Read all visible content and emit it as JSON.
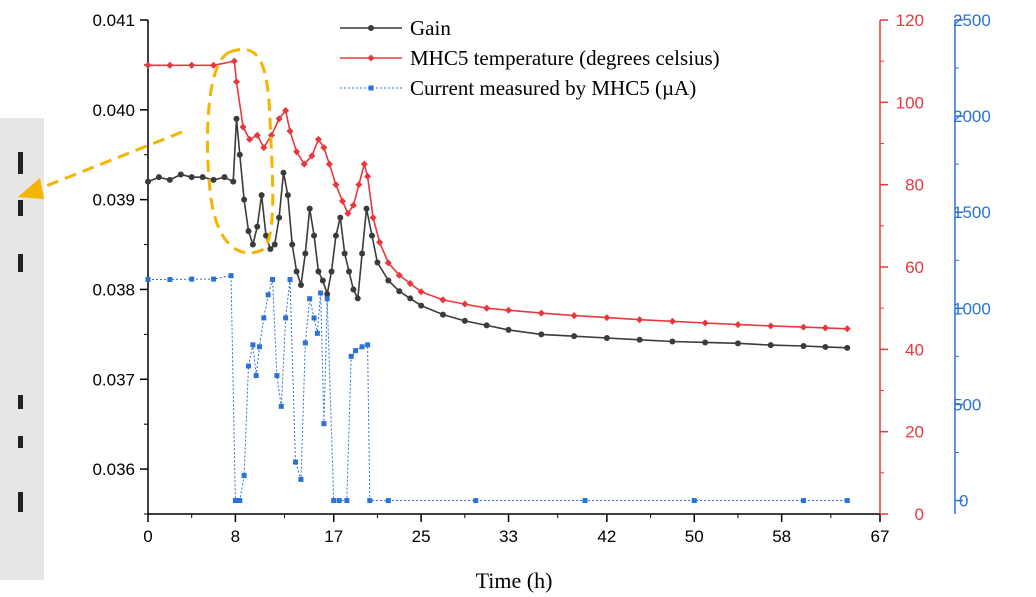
{
  "chart_data": {
    "type": "line",
    "xlabel": "Time (h)",
    "x_ticks": [
      "0",
      "8",
      "17",
      "25",
      "33",
      "42",
      "50",
      "58",
      "67"
    ],
    "xlim": [
      0,
      67
    ],
    "axes": {
      "left": {
        "ylim": [
          0.0355,
          0.041
        ],
        "ticks": [
          "0.036",
          "0.037",
          "0.038",
          "0.039",
          "0.040",
          "0.041"
        ],
        "color": "#333333"
      },
      "right_temperature": {
        "ylim": [
          0,
          120
        ],
        "ticks": [
          "0",
          "20",
          "40",
          "60",
          "80",
          "100",
          "120"
        ],
        "color": "#e8383d"
      },
      "right_current": {
        "ylim": [
          -70,
          2500
        ],
        "ticks": [
          "0",
          "500",
          "1000",
          "1500",
          "2000",
          "2500"
        ],
        "color": "#2a72d8"
      }
    },
    "series": [
      {
        "name": "Gain",
        "axis": "left",
        "color": "#3b3b3b",
        "x": [
          0,
          1,
          2,
          3,
          4,
          5,
          6,
          7,
          7.8,
          8.1,
          8.4,
          8.8,
          9.2,
          9.6,
          10.0,
          10.4,
          10.8,
          11.2,
          11.6,
          12.0,
          12.4,
          12.8,
          13.2,
          13.6,
          14.0,
          14.4,
          14.8,
          15.2,
          15.6,
          16.0,
          16.4,
          16.8,
          17.2,
          17.6,
          18.0,
          18.4,
          18.8,
          19.2,
          19.6,
          20.0,
          20.5,
          21,
          22,
          23,
          24,
          25,
          27,
          29,
          31,
          33,
          36,
          39,
          42,
          45,
          48,
          51,
          54,
          57,
          60,
          62,
          64
        ],
        "y": [
          0.0392,
          0.03925,
          0.03922,
          0.03928,
          0.03925,
          0.03925,
          0.03922,
          0.03925,
          0.0392,
          0.0399,
          0.0395,
          0.039,
          0.03865,
          0.0385,
          0.0387,
          0.03905,
          0.0386,
          0.03845,
          0.0385,
          0.0388,
          0.0393,
          0.03905,
          0.0385,
          0.0382,
          0.03805,
          0.0384,
          0.0389,
          0.0386,
          0.0382,
          0.0381,
          0.03795,
          0.0382,
          0.0386,
          0.0388,
          0.0384,
          0.0382,
          0.038,
          0.0379,
          0.0384,
          0.0389,
          0.0386,
          0.0383,
          0.0381,
          0.03798,
          0.0379,
          0.03782,
          0.03772,
          0.03765,
          0.0376,
          0.03755,
          0.0375,
          0.03748,
          0.03746,
          0.03744,
          0.03742,
          0.03741,
          0.0374,
          0.03738,
          0.03737,
          0.03736,
          0.03735
        ]
      },
      {
        "name": "MHC5 temperature (degrees celsius)",
        "axis": "right_temperature",
        "color": "#e8383d",
        "x": [
          0,
          2,
          4,
          6,
          7.9,
          8.1,
          8.7,
          9.3,
          10.0,
          10.6,
          11.3,
          12.0,
          12.6,
          13.0,
          13.6,
          14.3,
          15.0,
          15.6,
          16.1,
          16.6,
          17.2,
          17.8,
          18.3,
          18.8,
          19.3,
          19.8,
          20.1,
          20.6,
          21.2,
          22,
          23,
          24,
          25,
          27,
          29,
          31,
          33,
          36,
          39,
          42,
          45,
          48,
          51,
          54,
          57,
          60,
          62,
          64
        ],
        "y": [
          109,
          109,
          109,
          109,
          110,
          105,
          94,
          91,
          92,
          89,
          92,
          96,
          98,
          93,
          88,
          85,
          87,
          91,
          89,
          85,
          80,
          76,
          73,
          75,
          80,
          85,
          82,
          72,
          66,
          61,
          58,
          56,
          54,
          52,
          51,
          50,
          49.5,
          48.8,
          48.2,
          47.7,
          47.2,
          46.8,
          46.4,
          46.0,
          45.7,
          45.4,
          45.2,
          45.0
        ]
      },
      {
        "name": "Current measured by MHC5 (µA)",
        "axis": "right_current",
        "color": "#2a72d8",
        "x": [
          0,
          2,
          4,
          6,
          7.6,
          8.0,
          8.4,
          8.8,
          9.2,
          9.6,
          9.9,
          10.2,
          10.6,
          11.0,
          11.4,
          11.8,
          12.2,
          12.6,
          13.0,
          13.5,
          14.0,
          14.4,
          14.8,
          15.2,
          15.5,
          15.8,
          16.1,
          16.4,
          17.0,
          17.5,
          18.2,
          18.6,
          19.0,
          19.6,
          20.1,
          20.3,
          22,
          30,
          40,
          50,
          60,
          64
        ],
        "y": [
          1150,
          1150,
          1152,
          1152,
          1170,
          0,
          0,
          130,
          700,
          810,
          650,
          800,
          950,
          1070,
          1150,
          650,
          490,
          950,
          1150,
          200,
          110,
          820,
          1050,
          950,
          870,
          1080,
          400,
          1050,
          0,
          0,
          0,
          750,
          780,
          800,
          810,
          0,
          0,
          0,
          0,
          0,
          0,
          0
        ]
      }
    ],
    "legend": "top-center",
    "annotations": [
      {
        "type": "dashed-ellipse",
        "color": "#f5b400",
        "around_x": [
          7.5,
          10.5
        ]
      },
      {
        "type": "dashed-arrow",
        "color": "#f5b400",
        "direction": "left"
      }
    ]
  }
}
